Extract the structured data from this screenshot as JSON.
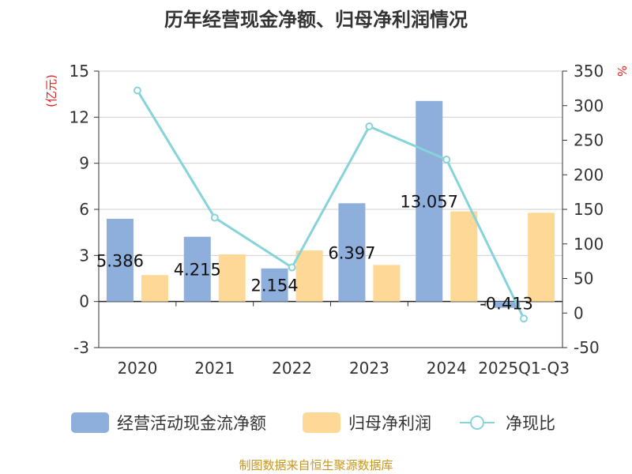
{
  "chart_data": {
    "type": "bar",
    "title": "历年经营现金净额、归母净利润情况",
    "categories": [
      "2020",
      "2021",
      "2022",
      "2023",
      "2024",
      "2025Q1-Q3"
    ],
    "y_left": {
      "unit": "(亿元)",
      "ylim": [
        -3,
        15
      ],
      "ticks": [
        -3,
        0,
        3,
        6,
        9,
        12,
        15
      ]
    },
    "y_right": {
      "unit": "%",
      "ylim": [
        -50,
        350
      ],
      "ticks": [
        -50,
        0,
        50,
        100,
        150,
        200,
        250,
        300,
        350
      ]
    },
    "grid": true,
    "legend_position": "bottom",
    "series": [
      {
        "name": "经营活动现金流净额",
        "type": "bar",
        "axis": "left",
        "color": "#8eaedb",
        "values": [
          5.386,
          4.215,
          2.154,
          6.397,
          13.057,
          -0.413
        ],
        "labels": [
          "5.386",
          "4.215",
          "2.154",
          "6.397",
          "13.057",
          "-0.413"
        ]
      },
      {
        "name": "归母净利润",
        "type": "bar",
        "axis": "left",
        "color": "#fdd897",
        "values": [
          1.72,
          3.07,
          3.32,
          2.38,
          5.87,
          5.78
        ]
      },
      {
        "name": "净现比",
        "type": "line",
        "axis": "right",
        "color": "#86d3d9",
        "values": [
          322,
          138,
          66,
          270,
          222,
          -8
        ]
      }
    ]
  },
  "source_text": "制图数据来自恒生聚源数据库"
}
